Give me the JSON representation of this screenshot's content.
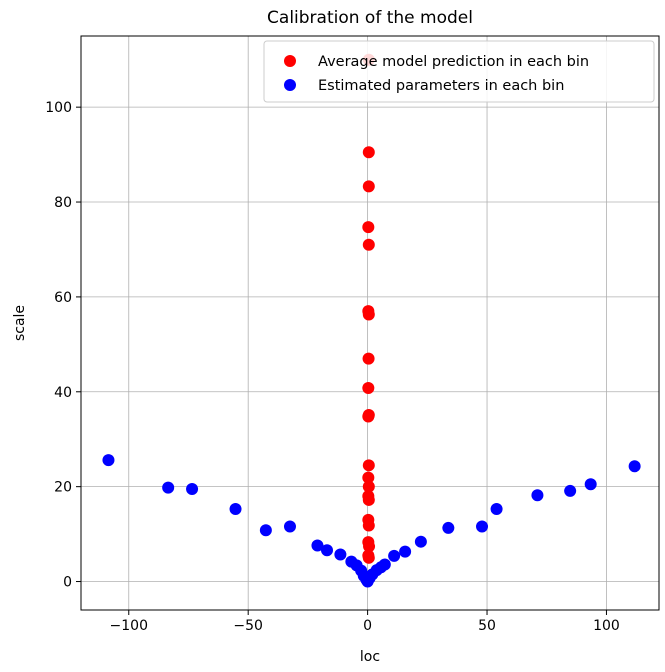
{
  "chart_data": {
    "type": "scatter",
    "title": "Calibration of the model",
    "xlabel": "loc",
    "ylabel": "scale",
    "xlim": [
      -120,
      122
    ],
    "ylim": [
      -6,
      115
    ],
    "xticks": [
      -100,
      -50,
      0,
      50,
      100
    ],
    "yticks": [
      0,
      20,
      40,
      60,
      80,
      100
    ],
    "grid": true,
    "legend_position": "top-right",
    "series": [
      {
        "name": "Average model prediction in each bin",
        "color": "#ff0000",
        "points": [
          [
            0.5,
            110
          ],
          [
            0.5,
            90.5
          ],
          [
            0.5,
            83.3
          ],
          [
            0.3,
            74.7
          ],
          [
            0.5,
            71.0
          ],
          [
            0.3,
            57.0
          ],
          [
            0.5,
            56.3
          ],
          [
            0.4,
            47.0
          ],
          [
            0.3,
            40.8
          ],
          [
            0.5,
            35.1
          ],
          [
            0.3,
            34.8
          ],
          [
            0.5,
            24.5
          ],
          [
            0.3,
            21.9
          ],
          [
            0.5,
            20.0
          ],
          [
            0.3,
            18.0
          ],
          [
            0.5,
            17.2
          ],
          [
            0.3,
            13.0
          ],
          [
            0.5,
            11.8
          ],
          [
            0.3,
            8.3
          ],
          [
            0.6,
            7.4
          ],
          [
            0.3,
            5.5
          ],
          [
            0.5,
            5.0
          ]
        ]
      },
      {
        "name": "Estimated parameters in each bin",
        "color": "#0000ff",
        "points": [
          [
            -108.5,
            25.6
          ],
          [
            -83.5,
            19.8
          ],
          [
            -73.5,
            19.5
          ],
          [
            -55.3,
            15.3
          ],
          [
            -42.6,
            10.8
          ],
          [
            -32.5,
            11.6
          ],
          [
            -21.0,
            7.6
          ],
          [
            -17.0,
            6.6
          ],
          [
            -11.4,
            5.7
          ],
          [
            -6.8,
            4.2
          ],
          [
            -4.6,
            3.4
          ],
          [
            -2.7,
            2.3
          ],
          [
            -1.6,
            1.2
          ],
          [
            -0.5,
            0.4
          ],
          [
            0.0,
            0.0
          ],
          [
            0.8,
            0.7
          ],
          [
            2.0,
            1.5
          ],
          [
            3.8,
            2.4
          ],
          [
            5.6,
            3.0
          ],
          [
            7.2,
            3.6
          ],
          [
            11.1,
            5.4
          ],
          [
            15.7,
            6.3
          ],
          [
            22.3,
            8.4
          ],
          [
            33.8,
            11.3
          ],
          [
            47.9,
            11.6
          ],
          [
            54.0,
            15.3
          ],
          [
            71.1,
            18.2
          ],
          [
            84.8,
            19.1
          ],
          [
            93.4,
            20.5
          ],
          [
            111.8,
            24.3
          ]
        ]
      }
    ]
  }
}
